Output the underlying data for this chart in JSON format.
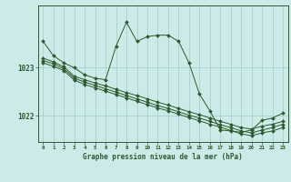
{
  "title": "Graphe pression niveau de la mer (hPa)",
  "bg_color": "#cceae8",
  "grid_color": "#aad4d2",
  "line_color": "#2d5a2d",
  "x_ticks": [
    0,
    1,
    2,
    3,
    4,
    5,
    6,
    7,
    8,
    9,
    10,
    11,
    12,
    13,
    14,
    15,
    16,
    17,
    18,
    19,
    20,
    21,
    22,
    23
  ],
  "ylim": [
    1021.45,
    1024.3
  ],
  "yticks": [
    1022,
    1023
  ],
  "series": {
    "main": [
      1023.55,
      1023.25,
      1023.1,
      1023.0,
      1022.85,
      1022.78,
      1022.75,
      1023.45,
      1023.95,
      1023.55,
      1023.65,
      1023.68,
      1023.68,
      1023.55,
      1023.1,
      1022.45,
      1022.1,
      1021.7,
      1021.68,
      1021.65,
      1021.7,
      1021.9,
      1021.95,
      1022.05
    ],
    "line1": [
      1023.2,
      1023.12,
      1023.02,
      1022.82,
      1022.75,
      1022.68,
      1022.62,
      1022.55,
      1022.48,
      1022.42,
      1022.35,
      1022.28,
      1022.22,
      1022.15,
      1022.08,
      1022.02,
      1021.95,
      1021.88,
      1021.82,
      1021.75,
      1021.72,
      1021.78,
      1021.82,
      1021.88
    ],
    "line2": [
      1023.15,
      1023.08,
      1022.98,
      1022.78,
      1022.7,
      1022.63,
      1022.56,
      1022.49,
      1022.42,
      1022.35,
      1022.28,
      1022.21,
      1022.15,
      1022.08,
      1022.01,
      1021.95,
      1021.88,
      1021.81,
      1021.75,
      1021.68,
      1021.64,
      1021.7,
      1021.75,
      1021.82
    ],
    "line3": [
      1023.1,
      1023.03,
      1022.94,
      1022.74,
      1022.65,
      1022.58,
      1022.51,
      1022.44,
      1022.37,
      1022.3,
      1022.23,
      1022.16,
      1022.1,
      1022.03,
      1021.96,
      1021.89,
      1021.82,
      1021.76,
      1021.69,
      1021.62,
      1021.58,
      1021.64,
      1021.68,
      1021.75
    ]
  }
}
